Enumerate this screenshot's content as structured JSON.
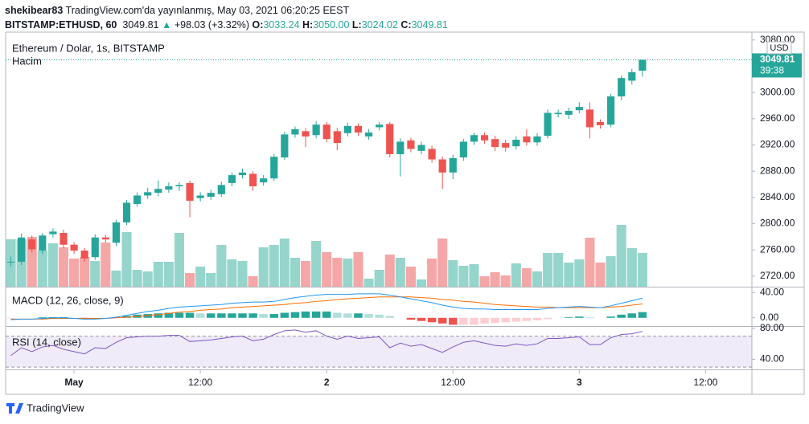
{
  "header": {
    "user": "shekibear83",
    "published": "TradingView.com'da yayınlanmış, May 03, 2021 06:20:25 EEST",
    "symbol": "BITSTAMP:ETHUSD, 60",
    "price": "3049.81",
    "arrow": "▲",
    "change": "+98.03 (+3.32%)",
    "o_label": "O:",
    "o": "3033.24",
    "h_label": "H:",
    "h": "3050.00",
    "l_label": "L:",
    "l": "3024.02",
    "c_label": "C:",
    "c": "3049.81"
  },
  "footer": {
    "brand": "TradingView"
  },
  "chart_data": [
    {
      "type": "candlestick",
      "title": "Ethereum / Dolar, 1s, BITSTAMP",
      "currency": "USD",
      "volume_title": "Hacim",
      "countdown": "39:38",
      "open": [
        2742,
        2742,
        2776,
        2759,
        2784,
        2786,
        2768,
        2759,
        2749,
        2779,
        2771,
        2802,
        2830,
        2843,
        2847,
        2852,
        2857,
        2862,
        2839,
        2841,
        2845,
        2862,
        2874,
        2876,
        2863,
        2869,
        2901,
        2936,
        2941,
        2935,
        2951,
        2941,
        2938,
        2949,
        2933,
        2947,
        2952,
        2906,
        2927,
        2911,
        2914,
        2898,
        2878,
        2901,
        2925,
        2935,
        2929,
        2923,
        2918,
        2933,
        2924,
        2934,
        2967,
        2966,
        2973,
        2974,
        2955,
        2951,
        2994,
        3018,
        3033.24
      ],
      "high": [
        2750,
        2785,
        2782,
        2786,
        2793,
        2791,
        2772,
        2763,
        2784,
        2783,
        2806,
        2836,
        2848,
        2855,
        2866,
        2863,
        2863,
        2866,
        2848,
        2852,
        2864,
        2878,
        2884,
        2880,
        2874,
        2906,
        2940,
        2948,
        2946,
        2956,
        2955,
        2946,
        2954,
        2953,
        2944,
        2955,
        2955,
        2930,
        2931,
        2925,
        2919,
        2902,
        2905,
        2929,
        2939,
        2939,
        2934,
        2928,
        2933,
        2944,
        2938,
        2974,
        2974,
        2977,
        2985,
        2985,
        2959,
        2998,
        3026,
        3036,
        3050
      ],
      "low": [
        2735,
        2737,
        2756,
        2754,
        2779,
        2763,
        2754,
        2742,
        2745,
        2771,
        2766,
        2798,
        2826,
        2838,
        2842,
        2847,
        2850,
        2810,
        2834,
        2836,
        2841,
        2857,
        2869,
        2850,
        2858,
        2865,
        2897,
        2931,
        2917,
        2930,
        2924,
        2912,
        2933,
        2934,
        2928,
        2942,
        2901,
        2872,
        2909,
        2906,
        2893,
        2853,
        2868,
        2896,
        2920,
        2922,
        2911,
        2910,
        2913,
        2919,
        2919,
        2930,
        2962,
        2960,
        2968,
        2930,
        2945,
        2947,
        2988,
        3012,
        3024.02
      ],
      "close": [
        2742,
        2779,
        2761,
        2782,
        2788,
        2768,
        2759,
        2747,
        2779,
        2776,
        2802,
        2832,
        2843,
        2848,
        2853,
        2857,
        2859,
        2835,
        2843,
        2847,
        2859,
        2874,
        2878,
        2857,
        2869,
        2902,
        2936,
        2944,
        2933,
        2951,
        2929,
        2923,
        2949,
        2939,
        2939,
        2951,
        2906,
        2925,
        2914,
        2920,
        2898,
        2878,
        2900,
        2925,
        2935,
        2927,
        2917,
        2916,
        2928,
        2924,
        2933,
        2969,
        2969,
        2972,
        2978,
        2947,
        2950,
        2994,
        3022,
        3031,
        3049.81
      ],
      "volume": [
        59,
        59,
        62,
        45,
        54,
        49,
        35,
        37,
        32,
        55,
        20,
        68,
        21,
        19,
        31,
        31,
        67,
        17,
        25,
        17,
        52,
        34,
        32,
        13,
        49,
        52,
        60,
        36,
        32,
        57,
        43,
        36,
        35,
        43,
        10,
        21,
        40,
        36,
        25,
        9,
        35,
        60,
        33,
        26,
        28,
        13,
        18,
        14,
        29,
        23,
        19,
        42,
        42,
        30,
        34,
        61,
        30,
        38,
        77,
        48,
        42
      ],
      "ylim": [
        2704,
        3092
      ],
      "yticks": [
        {
          "value": 2720,
          "label": "2720.00"
        },
        {
          "value": 2760,
          "label": "2760.00"
        },
        {
          "value": 2800,
          "label": "2800.00"
        },
        {
          "value": 2840,
          "label": "2840.00"
        },
        {
          "value": 2880,
          "label": "2880.00"
        },
        {
          "value": 2920,
          "label": "2920.00"
        },
        {
          "value": 2960,
          "label": "2960.00"
        },
        {
          "value": 3000,
          "label": "3000.00"
        },
        {
          "value": 3040,
          "label": "3040.00"
        },
        {
          "value": 3080,
          "label": "3080.00"
        }
      ],
      "xlim": [
        -0.5,
        70.4
      ],
      "xticks": [
        {
          "value": 6,
          "label": "May"
        },
        {
          "value": 18,
          "label": "12:00"
        },
        {
          "value": 30,
          "label": "2"
        },
        {
          "value": 42,
          "label": "12:00"
        },
        {
          "value": 54,
          "label": "3"
        },
        {
          "value": 66,
          "label": "12:00"
        }
      ],
      "colors": {
        "up": "#26a69a",
        "down": "#ef5350",
        "volume_up": "#95d5cc",
        "volume_down": "#f5a6a6"
      }
    },
    {
      "type": "macd",
      "title": "MACD (12, 26, close, 9)",
      "macd": [
        -3,
        -2,
        -2,
        -1,
        0,
        0,
        -1,
        -2,
        -2,
        -1,
        1,
        4,
        7,
        10,
        12,
        15,
        17,
        18,
        19,
        20,
        21,
        23,
        24,
        25,
        25,
        26,
        29,
        32,
        34,
        36,
        37,
        37,
        37,
        38,
        38,
        38,
        36,
        33,
        30,
        27,
        24,
        20,
        17,
        15,
        14,
        14,
        13,
        13,
        13,
        13,
        13,
        15,
        16,
        17,
        18,
        17,
        16,
        19,
        23,
        27,
        31
      ],
      "signal": [
        -2,
        -2,
        -2,
        -2,
        -1,
        -1,
        -1,
        -1,
        -1,
        -1,
        0,
        1,
        2,
        4,
        5,
        7,
        9,
        10,
        12,
        13,
        14,
        16,
        17,
        18,
        19,
        20,
        21,
        23,
        24,
        26,
        27,
        29,
        30,
        31,
        32,
        33,
        33,
        33,
        33,
        32,
        31,
        29,
        28,
        26,
        25,
        23,
        21,
        20,
        19,
        18,
        17,
        17,
        16,
        16,
        16,
        16,
        16,
        17,
        18,
        20,
        22
      ],
      "histogram": [
        -1,
        0,
        0,
        1,
        1,
        1,
        0,
        -1,
        -1,
        0,
        1,
        3,
        5,
        6,
        7,
        8,
        8,
        8,
        7,
        7,
        7,
        7,
        7,
        7,
        6,
        6,
        8,
        9,
        10,
        10,
        10,
        8,
        7,
        7,
        6,
        5,
        3,
        0,
        -3,
        -5,
        -7,
        -9,
        -11,
        -11,
        -11,
        -9,
        -8,
        -7,
        -6,
        -5,
        -4,
        -2,
        0,
        1,
        2,
        1,
        0,
        2,
        5,
        7,
        9
      ],
      "ylim": [
        -13,
        48
      ],
      "yticks": [
        {
          "value": 0,
          "label": "0.00"
        },
        {
          "value": 40,
          "label": "40.00"
        }
      ],
      "colors": {
        "macd": "#2196f3",
        "signal": "#ff6d00",
        "pos_up": "#26a69a",
        "pos_down": "#b2dfdb",
        "neg_down": "#ef5350",
        "neg_up": "#ffcdd2"
      }
    },
    {
      "type": "rsi",
      "title": "RSI (14, close)",
      "values": [
        45,
        55,
        50,
        56,
        58,
        53,
        50,
        47,
        55,
        54,
        62,
        68,
        69,
        70,
        70,
        71,
        71,
        63,
        64,
        65,
        67,
        69,
        70,
        64,
        66,
        72,
        77,
        78,
        75,
        77,
        70,
        66,
        70,
        67,
        68,
        69,
        55,
        61,
        57,
        59,
        54,
        49,
        56,
        62,
        64,
        61,
        58,
        57,
        60,
        58,
        60,
        67,
        67,
        68,
        69,
        59,
        59,
        68,
        72,
        73,
        76
      ],
      "ylim": [
        27,
        82
      ],
      "yticks": [
        {
          "value": 40,
          "label": "40.00"
        },
        {
          "value": 80,
          "label": "80.00"
        }
      ],
      "upper_band": 70,
      "lower_band": 30,
      "color": "#7e57c2"
    }
  ]
}
